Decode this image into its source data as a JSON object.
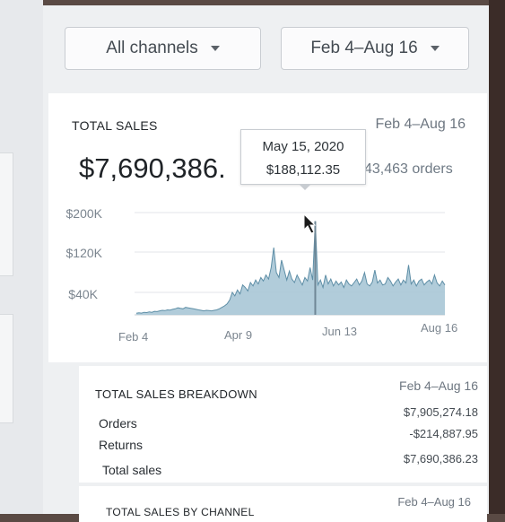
{
  "filters": {
    "channel": "All channels",
    "date_range": "Feb 4–Aug 16"
  },
  "total_sales": {
    "title": "TOTAL SALES",
    "date_range": "Feb 4–Aug 16",
    "value": "$7,690,386.",
    "orders": "43,463 orders",
    "tooltip": {
      "date": "May 15, 2020",
      "value": "$188,112.35"
    }
  },
  "chart_data": {
    "type": "area",
    "title": "",
    "xlabel": "",
    "ylabel": "",
    "y_ticks": [
      "$200K",
      "$120K",
      "$40K"
    ],
    "x_ticks": [
      "Feb 4",
      "Apr 9",
      "Jun 13",
      "Aug 16"
    ],
    "ylim": [
      0,
      220000
    ],
    "grid": true,
    "series": [
      {
        "values": [
          3000,
          4000,
          3500,
          5000,
          4500,
          6000,
          5000,
          7000,
          6500,
          8000,
          9000,
          8500,
          10000,
          9500,
          11000,
          12000,
          14000,
          13000,
          12000,
          15000,
          14000,
          13000,
          12000,
          11000,
          10000,
          9000,
          8000,
          9000,
          8500,
          8000,
          9000,
          10000,
          12000,
          15000,
          18000,
          22000,
          30000,
          45000,
          38000,
          50000,
          42000,
          60000,
          55000,
          48000,
          65000,
          58000,
          70000,
          62000,
          75000,
          68000,
          80000,
          72000,
          95000,
          135000,
          85000,
          75000,
          110000,
          90000,
          70000,
          88000,
          72000,
          65000,
          80000,
          70000,
          60000,
          75000,
          68000,
          95000,
          70000,
          188112,
          60000,
          70000,
          55000,
          80000,
          62000,
          72000,
          58000,
          68000,
          60000,
          66000,
          55000,
          70000,
          62000,
          58000,
          65000,
          72000,
          60000,
          68000,
          85000,
          62000,
          58000,
          66000,
          90000,
          64000,
          70000,
          60000,
          62000,
          75000,
          68000,
          58000,
          66000,
          72000,
          60000,
          70000,
          64000,
          100000,
          62000,
          70000,
          58000,
          68000,
          72000,
          60000,
          66000,
          70000,
          62000,
          80000,
          64000,
          58000,
          68000,
          60000
        ]
      }
    ]
  },
  "breakdown": {
    "title": "TOTAL SALES BREAKDOWN",
    "date_range": "Feb 4–Aug 16",
    "rows": [
      {
        "label": "Orders",
        "value": "$7,905,274.18"
      },
      {
        "label": "Returns",
        "value": "-$214,887.95"
      },
      {
        "label": "Total sales",
        "value": "$7,690,386.23"
      }
    ]
  },
  "by_channel": {
    "title": "TOTAL SALES BY CHANNEL",
    "date_range": "Feb 4–Aug 16"
  },
  "colors": {
    "chart_fill": "#a9c7d6",
    "chart_line": "#5e8ea6",
    "highlight_line": "#6f8796"
  }
}
